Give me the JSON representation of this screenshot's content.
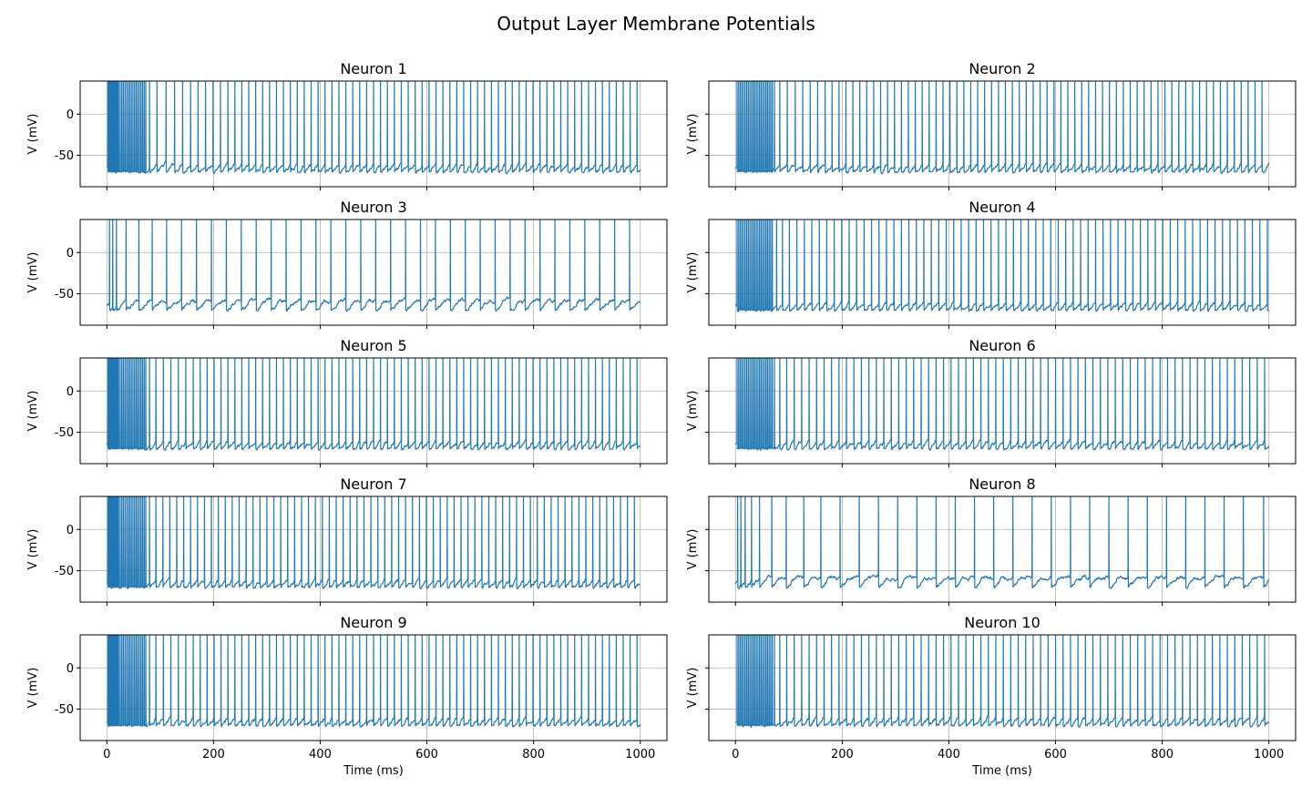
{
  "figure": {
    "title": "Output Layer Membrane Potentials"
  },
  "chart_data": {
    "type": "line",
    "layout": "5 rows x 2 columns, shared x axis",
    "xlabel": "Time (ms)",
    "ylabel": "V (mV)",
    "xlim": [
      -50,
      1050
    ],
    "ylim": [
      -88,
      40
    ],
    "xticks": [
      0,
      200,
      400,
      600,
      800,
      1000
    ],
    "yticks": [
      0,
      -50
    ],
    "grid": true,
    "line_color": "#1f77b4",
    "resting_potential": -65,
    "reset_potential": -70,
    "spike_peak": 40,
    "panels": [
      {
        "title": "Neuron 1",
        "spike_times_ms": [
          2,
          4,
          6,
          8,
          10,
          12,
          14,
          16,
          18,
          20,
          22,
          25,
          28,
          31,
          34,
          37,
          40,
          43,
          46,
          49,
          52,
          55,
          58,
          61,
          64,
          67,
          70,
          73,
          80,
          94,
          111,
          127,
          142,
          157,
          171,
          185,
          199,
          213,
          227,
          240,
          253,
          266,
          279,
          292,
          305,
          318,
          331,
          344,
          357,
          370,
          383,
          396,
          409,
          422,
          435,
          448,
          461,
          474,
          487,
          500,
          513,
          526,
          539,
          552,
          565,
          578,
          591,
          604,
          617,
          630,
          643,
          656,
          669,
          682,
          695,
          708,
          721,
          734,
          747,
          760,
          773,
          786,
          799,
          812,
          825,
          838,
          851,
          864,
          877,
          890,
          903,
          916,
          929,
          942,
          955,
          968,
          981,
          994
        ]
      },
      {
        "title": "Neuron 2",
        "spike_times_ms": [
          3,
          6,
          9,
          12,
          15,
          18,
          21,
          24,
          27,
          30,
          33,
          36,
          39,
          42,
          45,
          48,
          51,
          54,
          57,
          60,
          63,
          66,
          69,
          73,
          83,
          97,
          112,
          126,
          140,
          154,
          168,
          181,
          194,
          207,
          220,
          233,
          246,
          259,
          272,
          285,
          298,
          311,
          324,
          337,
          350,
          363,
          376,
          389,
          402,
          415,
          428,
          441,
          454,
          467,
          480,
          493,
          506,
          519,
          532,
          545,
          558,
          571,
          584,
          597,
          610,
          623,
          636,
          649,
          662,
          675,
          688,
          701,
          714,
          727,
          740,
          753,
          766,
          779,
          792,
          805,
          818,
          831,
          844,
          857,
          870,
          883,
          896,
          909,
          922,
          935,
          948,
          961,
          974,
          987
        ]
      },
      {
        "title": "Neuron 3",
        "spike_times_ms": [
          5,
          11,
          18,
          36,
          60,
          85,
          112,
          140,
          168,
          196,
          224,
          252,
          280,
          308,
          336,
          364,
          392,
          420,
          448,
          476,
          504,
          532,
          560,
          588,
          616,
          644,
          672,
          700,
          728,
          756,
          784,
          812,
          840,
          868,
          896,
          924,
          952,
          980
        ]
      },
      {
        "title": "Neuron 4",
        "spike_times_ms": [
          3,
          6,
          9,
          12,
          15,
          18,
          21,
          24,
          27,
          30,
          33,
          36,
          39,
          42,
          45,
          48,
          51,
          54,
          57,
          60,
          63,
          66,
          69,
          77,
          88,
          101,
          115,
          129,
          143,
          157,
          171,
          185,
          199,
          213,
          227,
          241,
          255,
          269,
          283,
          297,
          311,
          325,
          339,
          353,
          367,
          381,
          395,
          409,
          423,
          437,
          451,
          465,
          479,
          493,
          507,
          521,
          535,
          549,
          563,
          577,
          591,
          605,
          619,
          633,
          647,
          661,
          675,
          689,
          703,
          717,
          731,
          745,
          759,
          773,
          787,
          801,
          815,
          829,
          843,
          857,
          871,
          885,
          899,
          913,
          927,
          941,
          955,
          969,
          983,
          997
        ]
      },
      {
        "title": "Neuron 5",
        "spike_times_ms": [
          2,
          4,
          6,
          8,
          10,
          12,
          14,
          16,
          18,
          20,
          22,
          25,
          28,
          31,
          34,
          37,
          40,
          43,
          46,
          49,
          52,
          55,
          58,
          61,
          64,
          67,
          70,
          73,
          80,
          92,
          106,
          120,
          134,
          148,
          162,
          175,
          188,
          201,
          214,
          227,
          240,
          253,
          266,
          279,
          292,
          305,
          318,
          331,
          344,
          357,
          370,
          383,
          396,
          409,
          422,
          435,
          448,
          461,
          474,
          487,
          500,
          513,
          526,
          539,
          552,
          565,
          578,
          591,
          604,
          617,
          630,
          643,
          656,
          669,
          682,
          695,
          708,
          721,
          734,
          747,
          760,
          773,
          786,
          799,
          812,
          825,
          838,
          851,
          864,
          877,
          890,
          903,
          916,
          929,
          942,
          955,
          968,
          981,
          994
        ]
      },
      {
        "title": "Neuron 6",
        "spike_times_ms": [
          3,
          6,
          9,
          12,
          15,
          18,
          21,
          24,
          27,
          30,
          33,
          36,
          39,
          42,
          45,
          48,
          51,
          54,
          57,
          60,
          63,
          66,
          69,
          73,
          83,
          96,
          110,
          124,
          138,
          152,
          166,
          180,
          194,
          208,
          222,
          236,
          250,
          264,
          278,
          292,
          306,
          320,
          334,
          348,
          362,
          376,
          390,
          404,
          418,
          432,
          446,
          460,
          474,
          488,
          502,
          516,
          530,
          544,
          558,
          572,
          586,
          600,
          614,
          628,
          642,
          656,
          670,
          684,
          698,
          712,
          726,
          740,
          754,
          768,
          782,
          796,
          810,
          824,
          838,
          852,
          866,
          880,
          894,
          908,
          922,
          936,
          950,
          964,
          978,
          992
        ]
      },
      {
        "title": "Neuron 7",
        "spike_times_ms": [
          2,
          4,
          6,
          8,
          10,
          12,
          14,
          16,
          18,
          20,
          22,
          25,
          28,
          31,
          34,
          37,
          40,
          43,
          46,
          49,
          52,
          55,
          58,
          61,
          64,
          67,
          70,
          73,
          80,
          92,
          105,
          118,
          131,
          144,
          157,
          170,
          183,
          196,
          209,
          222,
          235,
          248,
          261,
          274,
          287,
          300,
          313,
          326,
          339,
          352,
          365,
          378,
          391,
          404,
          417,
          430,
          443,
          456,
          469,
          482,
          495,
          508,
          521,
          534,
          547,
          560,
          573,
          586,
          599,
          612,
          625,
          638,
          651,
          664,
          677,
          690,
          703,
          716,
          729,
          742,
          755,
          768,
          781,
          794,
          807,
          820,
          833,
          846,
          859,
          872,
          885,
          898,
          911,
          924,
          937,
          950,
          963,
          976,
          989
        ]
      },
      {
        "title": "Neuron 8",
        "spike_times_ms": [
          4,
          10,
          18,
          30,
          45,
          68,
          95,
          128,
          160,
          196,
          232,
          268,
          304,
          340,
          376,
          412,
          448,
          484,
          520,
          556,
          592,
          628,
          664,
          700,
          736,
          772,
          808,
          844,
          880,
          916,
          952,
          990
        ]
      },
      {
        "title": "Neuron 9",
        "spike_times_ms": [
          2,
          4,
          6,
          8,
          10,
          12,
          14,
          16,
          18,
          20,
          22,
          25,
          28,
          31,
          34,
          37,
          40,
          43,
          46,
          49,
          52,
          55,
          58,
          61,
          64,
          67,
          70,
          73,
          80,
          92,
          106,
          120,
          134,
          148,
          162,
          175,
          188,
          201,
          214,
          227,
          240,
          253,
          266,
          279,
          292,
          305,
          318,
          331,
          344,
          357,
          370,
          383,
          396,
          409,
          422,
          435,
          448,
          461,
          474,
          487,
          500,
          513,
          526,
          539,
          552,
          565,
          578,
          591,
          604,
          617,
          630,
          643,
          656,
          669,
          682,
          695,
          708,
          721,
          734,
          747,
          760,
          773,
          786,
          799,
          812,
          825,
          838,
          851,
          864,
          877,
          890,
          903,
          916,
          929,
          942,
          955,
          968,
          981,
          994
        ]
      },
      {
        "title": "Neuron 10",
        "spike_times_ms": [
          3,
          6,
          9,
          12,
          15,
          18,
          21,
          24,
          27,
          30,
          33,
          36,
          39,
          42,
          45,
          48,
          51,
          54,
          57,
          60,
          63,
          66,
          69,
          73,
          83,
          96,
          110,
          124,
          138,
          152,
          166,
          180,
          194,
          208,
          222,
          236,
          250,
          264,
          278,
          292,
          306,
          320,
          334,
          348,
          362,
          376,
          390,
          404,
          418,
          432,
          446,
          460,
          474,
          488,
          502,
          516,
          530,
          544,
          558,
          572,
          586,
          600,
          614,
          628,
          642,
          656,
          670,
          684,
          698,
          712,
          726,
          740,
          754,
          768,
          782,
          796,
          810,
          824,
          838,
          852,
          866,
          880,
          894,
          908,
          922,
          936,
          950,
          964,
          978,
          992
        ]
      }
    ]
  }
}
